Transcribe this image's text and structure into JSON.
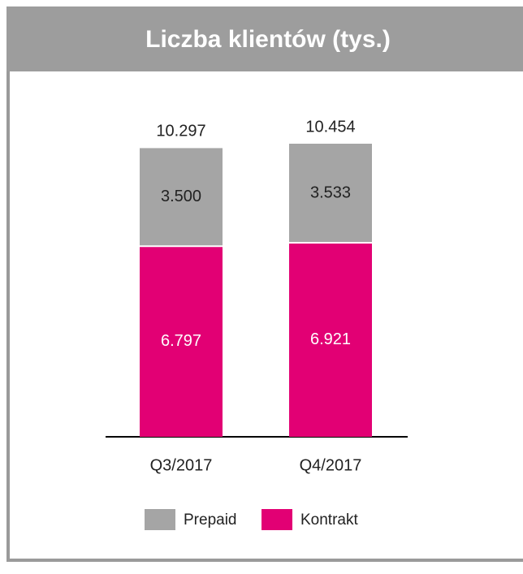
{
  "chart_data": {
    "type": "stacked-bar",
    "title": "Liczba klientów (tys.)",
    "categories": [
      "Q3/2017",
      "Q4/2017"
    ],
    "series": [
      {
        "name": "Prepaid",
        "color": "#a5a5a5",
        "values": [
          3500,
          3533
        ],
        "value_labels": [
          "3.500",
          "3.533"
        ]
      },
      {
        "name": "Kontrakt",
        "color": "#e20074",
        "values": [
          6797,
          6921
        ],
        "value_labels": [
          "6.797",
          "6.921"
        ]
      }
    ],
    "totals": {
      "values": [
        10297,
        10454
      ],
      "value_labels": [
        "10.297",
        "10.454"
      ]
    },
    "legend": "bottom"
  }
}
